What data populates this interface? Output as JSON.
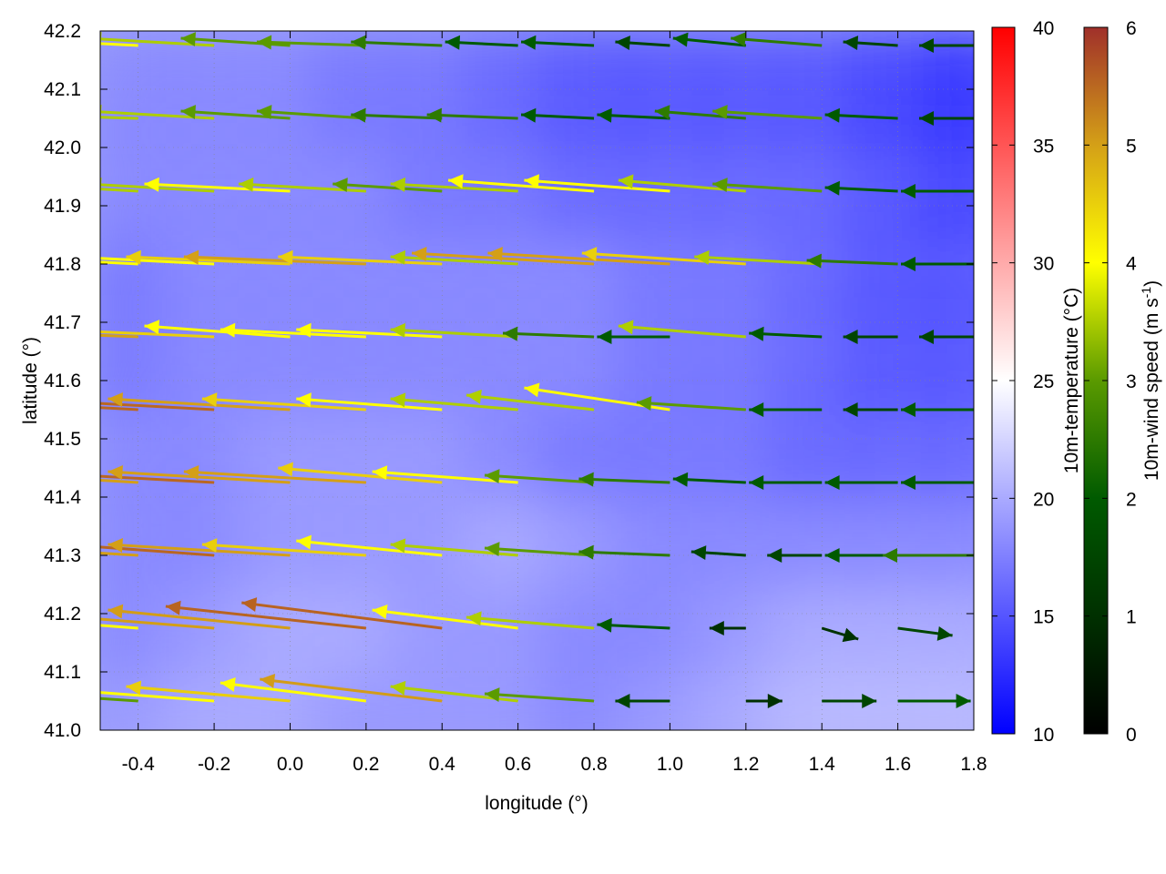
{
  "chart_data": {
    "type": "heatmap",
    "xlabel": "longitude (°)",
    "ylabel": "latitude (°)",
    "xlim": [
      -0.5,
      1.8
    ],
    "ylim": [
      41.0,
      42.2
    ],
    "xticks": [
      "-0.4",
      "-0.2",
      "0.0",
      "0.2",
      "0.4",
      "0.6",
      "0.8",
      "1.0",
      "1.2",
      "1.4",
      "1.6",
      "1.8"
    ],
    "yticks": [
      "41.0",
      "41.1",
      "41.2",
      "41.3",
      "41.4",
      "41.5",
      "41.6",
      "41.7",
      "41.8",
      "41.9",
      "42.0",
      "42.1",
      "42.2"
    ],
    "grid": true,
    "temperature": {
      "label": "10m-temperature (°C)",
      "range": [
        10,
        40
      ],
      "ticks": [
        "10",
        "15",
        "20",
        "25",
        "30",
        "35",
        "40"
      ],
      "colors": [
        "#0000ff",
        "#ffffff",
        "#ff0000"
      ],
      "lon": [
        -0.4,
        -0.2,
        0.0,
        0.2,
        0.4,
        0.6,
        0.8,
        1.0,
        1.2,
        1.4,
        1.6,
        1.8
      ],
      "lat": [
        41.05,
        41.2,
        41.35,
        41.5,
        41.65,
        41.8,
        41.95,
        42.1
      ],
      "values": [
        [
          19,
          20,
          20,
          19,
          19,
          19,
          18,
          19,
          20,
          21,
          21,
          21
        ],
        [
          18,
          19,
          20,
          20,
          19,
          19,
          18,
          18,
          19,
          20,
          20,
          20
        ],
        [
          18,
          18,
          19,
          19,
          19,
          20,
          19,
          18,
          18,
          18,
          18,
          18
        ],
        [
          18,
          18,
          19,
          19,
          19,
          18,
          17,
          17,
          17,
          16,
          16,
          16
        ],
        [
          17,
          18,
          18,
          18,
          18,
          18,
          18,
          17,
          17,
          16,
          15,
          15
        ],
        [
          17,
          18,
          18,
          18,
          18,
          18,
          18,
          17,
          17,
          16,
          15,
          15
        ],
        [
          18,
          18,
          18,
          18,
          17,
          17,
          16,
          16,
          16,
          16,
          15,
          14
        ],
        [
          18,
          18,
          18,
          17,
          17,
          16,
          15,
          15,
          15,
          15,
          14,
          13
        ]
      ]
    },
    "wind": {
      "label": "10m-wind speed (m s-1)",
      "label_main": "10m-wind speed (m s",
      "label_sup": "-1",
      "label_end": ")",
      "range": [
        0,
        6
      ],
      "ticks": [
        "0",
        "1",
        "2",
        "3",
        "4",
        "5",
        "6"
      ],
      "colors": [
        "#000000",
        "#003000",
        "#005a00",
        "#5a9a00",
        "#ffff00",
        "#d4a017",
        "#a0302a"
      ],
      "lon": [
        -0.4,
        -0.2,
        0.0,
        0.2,
        0.4,
        0.6,
        0.8,
        1.0,
        1.2,
        1.4,
        1.6,
        1.8
      ],
      "lat": [
        41.05,
        41.175,
        41.3,
        41.425,
        41.55,
        41.675,
        41.8,
        41.925,
        42.05,
        42.175
      ],
      "u": [
        [
          -3,
          -4,
          -4.5,
          -4,
          -5,
          -3.5,
          -3,
          -1.5,
          1.0,
          1.5,
          2,
          2
        ],
        [
          -4,
          -5,
          -5,
          -5.5,
          -5.5,
          -4,
          -3.5,
          -2,
          -1,
          1,
          1.5,
          1.5
        ],
        [
          -5,
          -5.5,
          -5,
          -4.5,
          -4,
          -3.5,
          -3,
          -2.5,
          -1.5,
          -1.5,
          -2,
          -2.5
        ],
        [
          -5,
          -5.5,
          -5,
          -5,
          -4.5,
          -4,
          -3,
          -2.5,
          -2,
          -2,
          -2,
          -2
        ],
        [
          -5.5,
          -5.5,
          -5,
          -4.5,
          -4,
          -3.5,
          -3.5,
          -4,
          -3,
          -2,
          -1.5,
          -2
        ],
        [
          -5,
          -4.5,
          -4,
          -4,
          -4,
          -3.5,
          -2.5,
          -2,
          -3.5,
          -2,
          -1.5,
          -1.5
        ],
        [
          -4,
          -4,
          -4.5,
          -5,
          -4.5,
          -3.5,
          -5,
          -5,
          -4.5,
          -3.5,
          -2.5,
          -2
        ],
        [
          -3.5,
          -3.5,
          -4,
          -3.5,
          -3,
          -3.5,
          -4,
          -4,
          -3.5,
          -3,
          -2,
          -2
        ],
        [
          -3.5,
          -3.5,
          -3,
          -3,
          -2.5,
          -2.5,
          -2,
          -2,
          -2.5,
          -3,
          -2,
          -1.5
        ],
        [
          -4,
          -3.5,
          -3,
          -3,
          -2.5,
          -2,
          -2,
          -1.5,
          -2,
          -2.5,
          -1.5,
          -1.5
        ]
      ],
      "v": [
        [
          0.2,
          0.3,
          0.4,
          0.5,
          0.6,
          0.4,
          0.2,
          0,
          0,
          0,
          0,
          0
        ],
        [
          0.3,
          0.4,
          0.5,
          0.6,
          0.7,
          0.5,
          0.3,
          0.1,
          0,
          -0.3,
          -0.2,
          0
        ],
        [
          0.3,
          0.4,
          0.3,
          0.3,
          0.4,
          0.3,
          0.2,
          0.1,
          0.1,
          0,
          0,
          0
        ],
        [
          0.3,
          0.3,
          0.3,
          0.3,
          0.4,
          0.3,
          0.2,
          0.1,
          0.1,
          0,
          0,
          0
        ],
        [
          0.3,
          0.3,
          0.3,
          0.3,
          0.3,
          0.3,
          0.4,
          0.6,
          0.2,
          0,
          0,
          0
        ],
        [
          0.2,
          0.2,
          0.3,
          0.2,
          0.2,
          0.2,
          0.1,
          0,
          0.3,
          0.1,
          0,
          0
        ],
        [
          0.2,
          0.2,
          0.2,
          0.2,
          0.2,
          0.2,
          0.3,
          0.3,
          0.3,
          0.2,
          0.1,
          0
        ],
        [
          0.2,
          0.2,
          0.2,
          0.2,
          0.2,
          0.2,
          0.3,
          0.3,
          0.3,
          0.2,
          0.1,
          0
        ],
        [
          0.1,
          0.2,
          0.2,
          0.2,
          0.1,
          0.1,
          0.1,
          0.1,
          0.2,
          0.2,
          0.1,
          0
        ],
        [
          0.2,
          0.2,
          0.2,
          0.1,
          0.1,
          0.1,
          0.1,
          0.1,
          0.2,
          0.2,
          0.1,
          0
        ]
      ]
    }
  }
}
